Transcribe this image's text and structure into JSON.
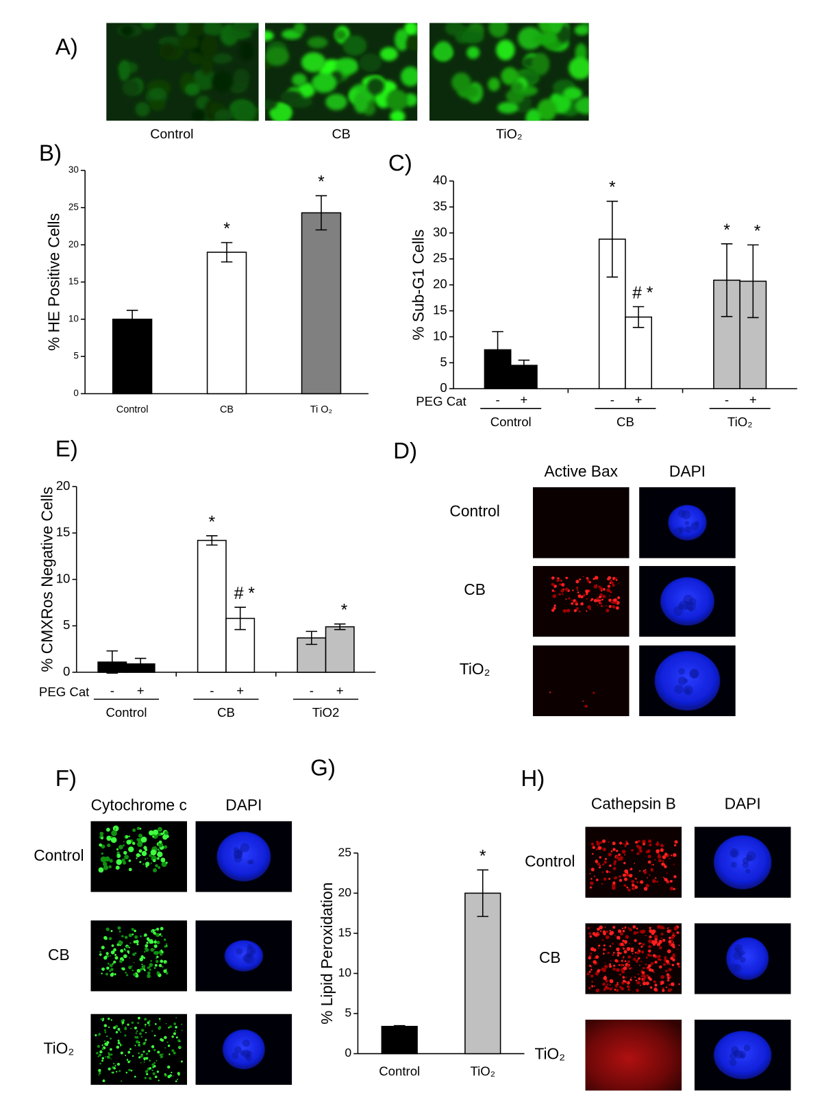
{
  "chart_data": [
    {
      "type": "bar",
      "panel": "B)",
      "ylabel": "% HE Positive Cells",
      "categories": [
        "Control",
        "CB",
        "Ti O₂"
      ],
      "values": [
        10,
        19,
        24.3
      ],
      "errors": [
        1.2,
        1.3,
        2.3
      ],
      "colors": [
        "#000000",
        "#ffffff",
        "#808080"
      ],
      "annotations": [
        null,
        "*",
        "*"
      ],
      "ylim": [
        0,
        30
      ],
      "yticks": [
        0,
        5,
        10,
        15,
        20,
        25,
        30
      ]
    },
    {
      "type": "grouped_bar",
      "panel": "C)",
      "ylabel": "% Sub-G1 Cells",
      "group_prefix": "PEG Cat",
      "categories": [
        "Control",
        "CB",
        "TiO₂"
      ],
      "colors": [
        "#000000",
        "#ffffff",
        "#c0c0c0"
      ],
      "series": [
        {
          "name": "-",
          "values": [
            7.5,
            28.8,
            20.9
          ],
          "errors": [
            3.5,
            7.3,
            7.0
          ],
          "annotations": [
            null,
            "*",
            "*"
          ]
        },
        {
          "name": "+",
          "values": [
            4.5,
            13.8,
            20.7
          ],
          "errors": [
            1.0,
            2.0,
            7.0
          ],
          "annotations": [
            null,
            "# *",
            "*"
          ]
        }
      ],
      "ylim": [
        0,
        40
      ],
      "yticks": [
        0,
        5,
        10,
        15,
        20,
        25,
        30,
        35,
        40
      ]
    },
    {
      "type": "grouped_bar",
      "panel": "E)",
      "ylabel": "% CMXRos Negative Cells",
      "group_prefix": "PEG Cat",
      "categories": [
        "Control",
        "CB",
        "TiO2"
      ],
      "colors": [
        "#000000",
        "#ffffff",
        "#c0c0c0"
      ],
      "series": [
        {
          "name": "-",
          "values": [
            1.1,
            14.2,
            3.7
          ],
          "errors": [
            1.2,
            0.5,
            0.7
          ],
          "annotations": [
            null,
            "*",
            null
          ]
        },
        {
          "name": "+",
          "values": [
            0.9,
            5.8,
            4.9
          ],
          "errors": [
            0.6,
            1.2,
            0.3
          ],
          "annotations": [
            null,
            "# *",
            "*"
          ]
        }
      ],
      "ylim": [
        0,
        20
      ],
      "yticks": [
        0,
        5,
        10,
        15,
        20
      ]
    },
    {
      "type": "bar",
      "panel": "G)",
      "ylabel": "% Lipid Peroxidation",
      "categories": [
        "Control",
        "TiO₂"
      ],
      "values": [
        3.4,
        20
      ],
      "errors": [
        0.1,
        2.9
      ],
      "colors": [
        "#000000",
        "#c0c0c0"
      ],
      "annotations": [
        null,
        "*"
      ],
      "ylim": [
        0,
        25
      ],
      "yticks": [
        0,
        5,
        10,
        15,
        20,
        25
      ]
    }
  ],
  "image_panels": [
    {
      "panel": "A)",
      "captions": [
        "Control",
        "CB",
        "TiO₂"
      ]
    },
    {
      "panel": "D)",
      "columns": [
        "Active Bax",
        "DAPI"
      ],
      "rows": [
        "Control",
        "CB",
        "TiO₂"
      ]
    },
    {
      "panel": "F)",
      "columns": [
        "Cytochrome c",
        "DAPI"
      ],
      "rows": [
        "Control",
        "CB",
        "TiO₂"
      ]
    },
    {
      "panel": "H)",
      "columns": [
        "Cathepsin B",
        "DAPI"
      ],
      "rows": [
        "Control",
        "CB",
        "TiO₂"
      ]
    }
  ]
}
